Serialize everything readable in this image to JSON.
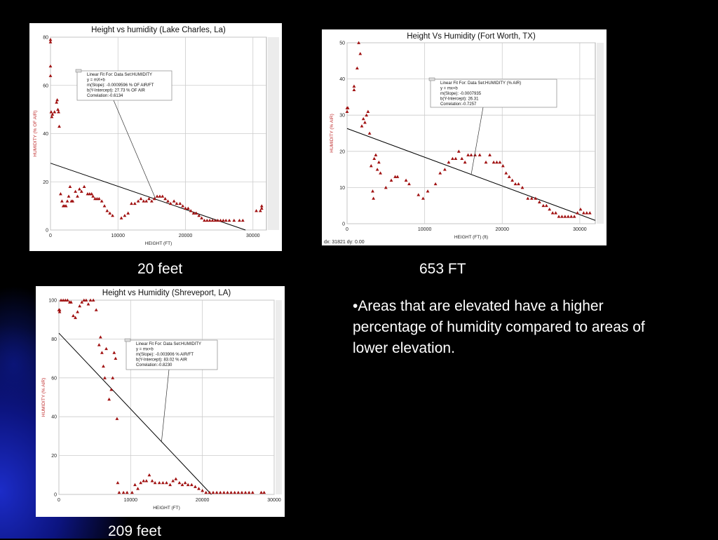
{
  "slide": {
    "captions": [
      "20 feet",
      "653 FT",
      "209 feet"
    ],
    "note": "•Areas that are elevated have a higher percentage of humidity compared to areas of lower elevation."
  },
  "colors": {
    "marker": "#a01010",
    "fit_line": "#000000",
    "grid": "#cccccc",
    "background": "#000000"
  },
  "chart_data": [
    {
      "type": "scatter",
      "title": "Height vs humidity (Lake Charles, La)",
      "xlabel": "HEIGHT (FT)",
      "ylabel": "HUMIDITY (% OF AIR)",
      "xlim": [
        0,
        32000
      ],
      "ylim": [
        0,
        80
      ],
      "xticks": [
        0,
        10000,
        20000,
        30000
      ],
      "yticks": [
        0,
        20,
        40,
        60,
        80
      ],
      "grid": true,
      "fit_box": {
        "lines": [
          "Linear Fit For:  Data Set:HUMIDITY",
          "y = mX+b",
          "m(Slope): -0.0009596 % OF AIR/FT",
          "b(Y-Intercept): 27.73 % OF AIR",
          "Correlation:-0.6134"
        ],
        "slope": -0.0009596,
        "intercept": 27.73
      },
      "series": [
        {
          "points": [
            [
              0,
              79
            ],
            [
              0,
              78
            ],
            [
              0,
              68
            ],
            [
              0,
              64
            ],
            [
              100,
              49
            ],
            [
              200,
              47
            ],
            [
              300,
              48
            ],
            [
              600,
              49
            ],
            [
              900,
              53
            ],
            [
              1000,
              54
            ],
            [
              1100,
              50
            ],
            [
              1200,
              49
            ],
            [
              1300,
              43
            ],
            [
              1500,
              15
            ],
            [
              1700,
              12
            ],
            [
              1900,
              10
            ],
            [
              2100,
              10
            ],
            [
              2300,
              10
            ],
            [
              2500,
              12
            ],
            [
              2700,
              14
            ],
            [
              2900,
              18
            ],
            [
              3100,
              12
            ],
            [
              3300,
              12
            ],
            [
              3700,
              16
            ],
            [
              4000,
              14
            ],
            [
              4300,
              17
            ],
            [
              4600,
              16
            ],
            [
              5000,
              18
            ],
            [
              5500,
              15
            ],
            [
              5800,
              15
            ],
            [
              6100,
              15
            ],
            [
              6300,
              14
            ],
            [
              6600,
              13
            ],
            [
              6900,
              13
            ],
            [
              7200,
              13
            ],
            [
              7600,
              12
            ],
            [
              8000,
              10
            ],
            [
              8400,
              8
            ],
            [
              8800,
              7
            ],
            [
              9200,
              6
            ],
            [
              10500,
              5
            ],
            [
              11000,
              6
            ],
            [
              11500,
              7
            ],
            [
              12000,
              11
            ],
            [
              12500,
              11
            ],
            [
              13000,
              12
            ],
            [
              13400,
              13
            ],
            [
              13800,
              12
            ],
            [
              14200,
              12
            ],
            [
              14600,
              13
            ],
            [
              15000,
              12
            ],
            [
              15400,
              13
            ],
            [
              15800,
              14
            ],
            [
              16200,
              14
            ],
            [
              16600,
              14
            ],
            [
              17000,
              13
            ],
            [
              17400,
              12
            ],
            [
              17800,
              11
            ],
            [
              18300,
              12
            ],
            [
              18700,
              11
            ],
            [
              19200,
              11
            ],
            [
              19600,
              10
            ],
            [
              20000,
              9
            ],
            [
              20400,
              9
            ],
            [
              20800,
              8
            ],
            [
              21200,
              7
            ],
            [
              21600,
              7
            ],
            [
              22000,
              6
            ],
            [
              22400,
              5
            ],
            [
              22800,
              4
            ],
            [
              23200,
              4
            ],
            [
              23600,
              4
            ],
            [
              24000,
              4
            ],
            [
              24400,
              4
            ],
            [
              24800,
              4
            ],
            [
              25200,
              4
            ],
            [
              25600,
              4
            ],
            [
              26000,
              4
            ],
            [
              26500,
              4
            ],
            [
              27200,
              4
            ],
            [
              28000,
              4
            ],
            [
              28500,
              4
            ],
            [
              30500,
              8
            ],
            [
              31100,
              8
            ],
            [
              31300,
              9
            ],
            [
              31300,
              10
            ]
          ]
        }
      ]
    },
    {
      "type": "scatter",
      "title": "Height Vs Humidity (Fort Worth, TX)",
      "xlabel": "HEIGHT (FT) (ft)",
      "ylabel": "HUMIDITY (% AIR)",
      "footer": "dx: 31821 dy: 0.00",
      "xlim": [
        0,
        32000
      ],
      "ylim": [
        0,
        50
      ],
      "xticks": [
        0,
        10000,
        20000,
        30000
      ],
      "yticks": [
        0,
        10,
        20,
        30,
        40,
        50
      ],
      "grid": true,
      "fit_box": {
        "lines": [
          "Linear Fit For:  Data Set:HUMIDITY (% AIR)",
          "y = mx+b",
          "m(Slope): -0.0007935",
          "b(Y-Intercept): 26.31",
          "Correlation:-0.7257"
        ],
        "slope": -0.0007935,
        "intercept": 26.31
      },
      "series": [
        {
          "points": [
            [
              0,
              32
            ],
            [
              100,
              32
            ],
            [
              0,
              31
            ],
            [
              900,
              38
            ],
            [
              900,
              37
            ],
            [
              1300,
              43
            ],
            [
              1500,
              50
            ],
            [
              1700,
              47
            ],
            [
              1900,
              27
            ],
            [
              2100,
              29
            ],
            [
              2300,
              28
            ],
            [
              2500,
              30
            ],
            [
              2700,
              31
            ],
            [
              2900,
              25
            ],
            [
              3100,
              16
            ],
            [
              3300,
              9
            ],
            [
              3400,
              7
            ],
            [
              3500,
              18
            ],
            [
              3700,
              19
            ],
            [
              3900,
              15
            ],
            [
              4100,
              17
            ],
            [
              4300,
              14
            ],
            [
              5000,
              10
            ],
            [
              5700,
              12
            ],
            [
              6200,
              13
            ],
            [
              6500,
              13
            ],
            [
              7600,
              12
            ],
            [
              8000,
              11
            ],
            [
              9200,
              8
            ],
            [
              9800,
              7
            ],
            [
              10400,
              9
            ],
            [
              11400,
              11
            ],
            [
              12000,
              14
            ],
            [
              12600,
              15
            ],
            [
              13100,
              17
            ],
            [
              13600,
              18
            ],
            [
              14000,
              18
            ],
            [
              14400,
              20
            ],
            [
              14800,
              18
            ],
            [
              15200,
              17
            ],
            [
              15600,
              19
            ],
            [
              16000,
              19
            ],
            [
              16500,
              19
            ],
            [
              17100,
              19
            ],
            [
              17900,
              17
            ],
            [
              18400,
              19
            ],
            [
              18900,
              17
            ],
            [
              19300,
              17
            ],
            [
              19700,
              17
            ],
            [
              20100,
              16
            ],
            [
              20500,
              14
            ],
            [
              20900,
              13
            ],
            [
              21300,
              12
            ],
            [
              21700,
              11
            ],
            [
              22100,
              11
            ],
            [
              22600,
              10
            ],
            [
              23300,
              7
            ],
            [
              23800,
              7
            ],
            [
              24300,
              7
            ],
            [
              24800,
              6
            ],
            [
              25300,
              5
            ],
            [
              25700,
              5
            ],
            [
              26100,
              4
            ],
            [
              26500,
              3
            ],
            [
              26900,
              3
            ],
            [
              27300,
              2
            ],
            [
              27700,
              2
            ],
            [
              28100,
              2
            ],
            [
              28500,
              2
            ],
            [
              28900,
              2
            ],
            [
              29300,
              2
            ],
            [
              29700,
              3
            ],
            [
              30100,
              4
            ],
            [
              30500,
              3
            ],
            [
              30900,
              3
            ],
            [
              31300,
              3
            ]
          ]
        }
      ]
    },
    {
      "type": "scatter",
      "title": "Height vs Humidity (Shreveport, LA)",
      "xlabel": "HEIGHT (FT)",
      "ylabel": "HUMIDITY (% AIR)",
      "xlim": [
        0,
        30000
      ],
      "ylim": [
        0,
        100
      ],
      "xticks": [
        0,
        10000,
        20000,
        30000
      ],
      "yticks": [
        0,
        20,
        40,
        60,
        80,
        100
      ],
      "grid": true,
      "fit_box": {
        "lines": [
          "Linear Fit For:  Data Set:HUMIDITY",
          "y = mx+b",
          "m(Slope): -0.003906 % AIR/FT",
          "b(Y-Intercept): 83.02 % AIR",
          "Correlation:-0.8230"
        ],
        "slope": -0.003906,
        "intercept": 83.02
      },
      "series": [
        {
          "points": [
            [
              0,
              95
            ],
            [
              100,
              95
            ],
            [
              100,
              94
            ],
            [
              300,
              100
            ],
            [
              600,
              100
            ],
            [
              900,
              100
            ],
            [
              1200,
              100
            ],
            [
              1500,
              99
            ],
            [
              1700,
              99
            ],
            [
              2000,
              92
            ],
            [
              2300,
              91
            ],
            [
              2600,
              94
            ],
            [
              2900,
              97
            ],
            [
              3200,
              99
            ],
            [
              3500,
              100
            ],
            [
              3800,
              100
            ],
            [
              4100,
              98
            ],
            [
              4400,
              100
            ],
            [
              4800,
              100
            ],
            [
              5200,
              95
            ],
            [
              5600,
              77
            ],
            [
              5800,
              81
            ],
            [
              6000,
              73
            ],
            [
              6200,
              66
            ],
            [
              6400,
              60
            ],
            [
              6600,
              75
            ],
            [
              7000,
              49
            ],
            [
              7300,
              54
            ],
            [
              7500,
              60
            ],
            [
              7700,
              73
            ],
            [
              7900,
              70
            ],
            [
              8100,
              39
            ],
            [
              8200,
              6
            ],
            [
              8400,
              1
            ],
            [
              9000,
              1
            ],
            [
              9500,
              1
            ],
            [
              10200,
              1
            ],
            [
              10600,
              5
            ],
            [
              11000,
              3
            ],
            [
              11400,
              6
            ],
            [
              11800,
              7
            ],
            [
              12200,
              7
            ],
            [
              12600,
              10
            ],
            [
              13000,
              7
            ],
            [
              13400,
              6
            ],
            [
              14000,
              6
            ],
            [
              14500,
              6
            ],
            [
              15000,
              6
            ],
            [
              15500,
              5
            ],
            [
              15900,
              7
            ],
            [
              16300,
              8
            ],
            [
              16800,
              6
            ],
            [
              17200,
              5
            ],
            [
              17600,
              6
            ],
            [
              18000,
              5
            ],
            [
              18500,
              5
            ],
            [
              19000,
              4
            ],
            [
              19500,
              3
            ],
            [
              20000,
              2
            ],
            [
              20500,
              1
            ],
            [
              21000,
              1
            ],
            [
              21500,
              1
            ],
            [
              22000,
              1
            ],
            [
              22500,
              1
            ],
            [
              23000,
              1
            ],
            [
              23500,
              1
            ],
            [
              24000,
              1
            ],
            [
              24500,
              1
            ],
            [
              25000,
              1
            ],
            [
              25500,
              1
            ],
            [
              26000,
              1
            ],
            [
              26500,
              1
            ],
            [
              27000,
              1
            ],
            [
              28200,
              1
            ],
            [
              28600,
              1
            ]
          ]
        }
      ]
    }
  ]
}
